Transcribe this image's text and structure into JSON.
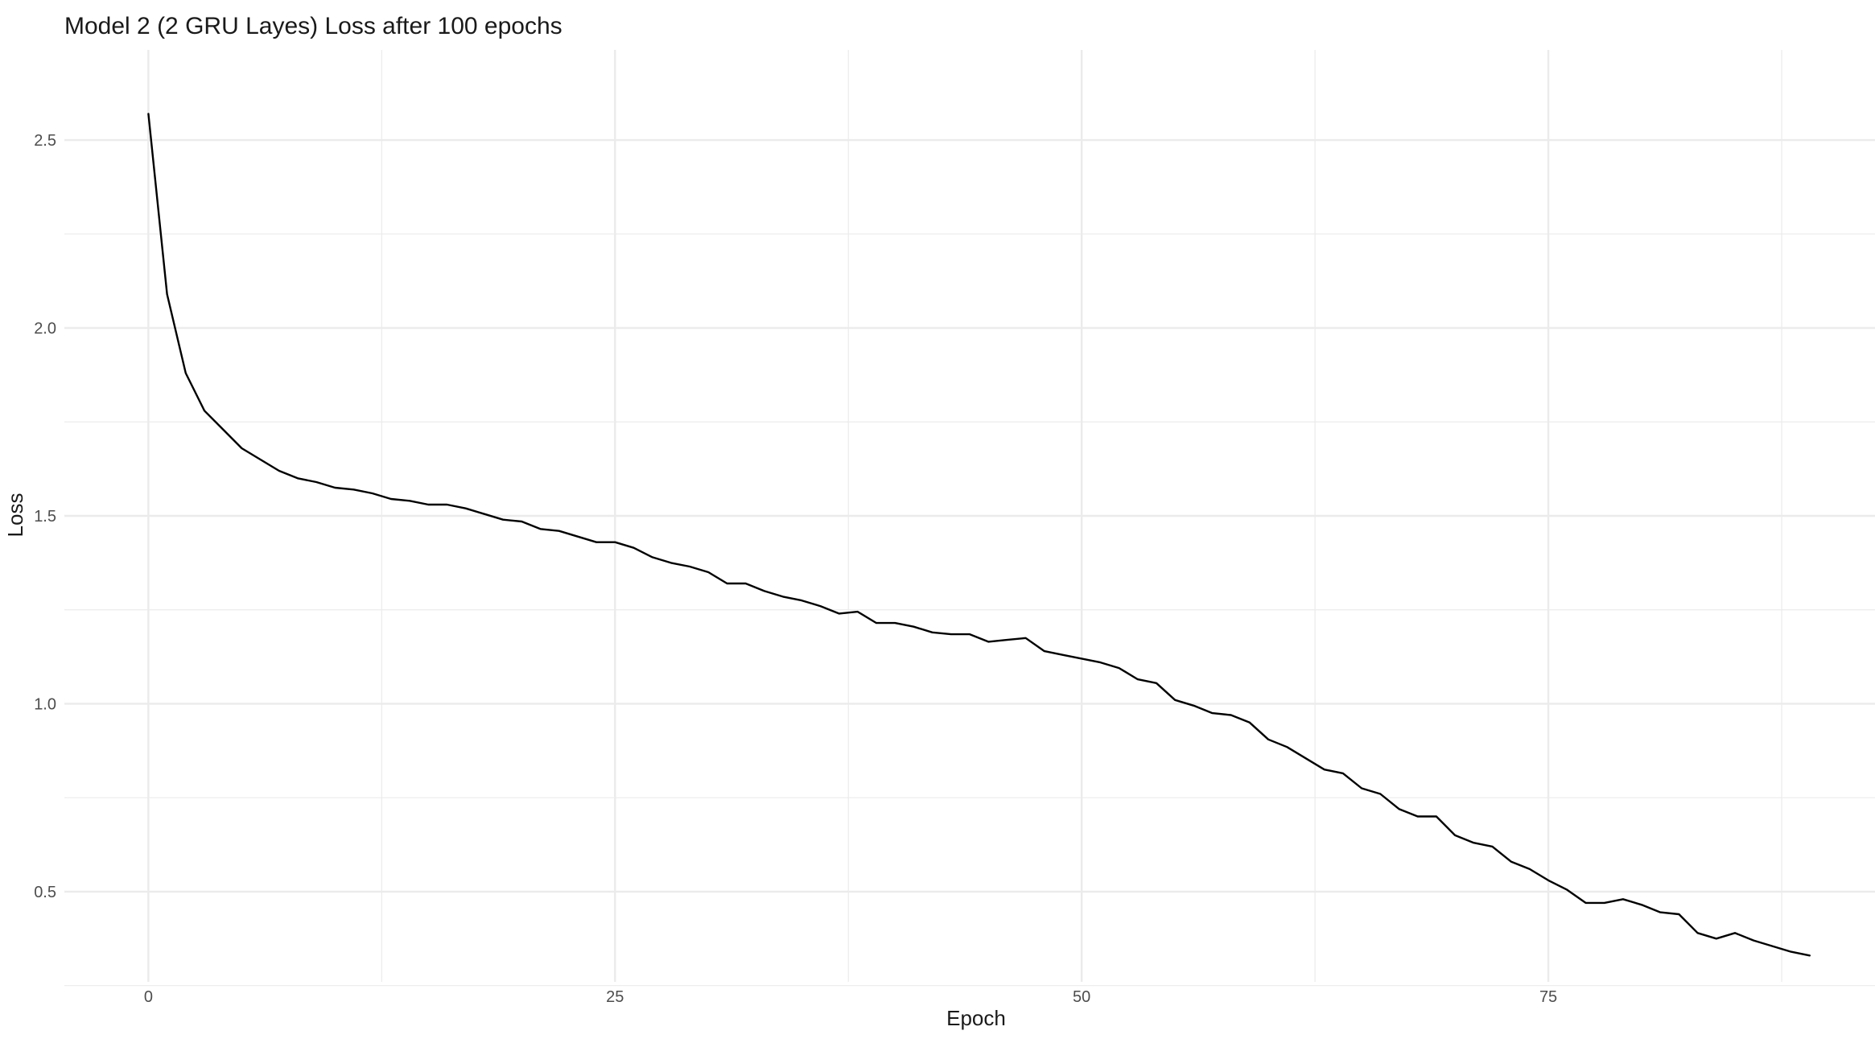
{
  "chart_data": {
    "type": "line",
    "title": "Model 2 (2 GRU Layes) Loss after 100 epochs",
    "xlabel": "Epoch",
    "ylabel": "Loss",
    "xlim": [
      -4.5,
      92.5
    ],
    "ylim": [
      0.26,
      2.74
    ],
    "x_ticks": [
      0,
      25,
      50,
      75
    ],
    "x_tick_labels": [
      "0",
      "25",
      "50",
      "75"
    ],
    "x_minor_ticks": [
      12.5,
      37.5,
      62.5,
      87.5
    ],
    "y_ticks": [
      0.5,
      1.0,
      1.5,
      2.0,
      2.5
    ],
    "y_tick_labels": [
      "0.5",
      "1.0",
      "1.5",
      "2.0",
      "2.5"
    ],
    "y_minor_ticks": [
      0.25,
      0.75,
      1.25,
      1.75,
      2.25
    ],
    "grid": true,
    "line_color": "#000000",
    "grid_color": "#ebebeb",
    "series": [
      {
        "x": [
          0,
          1,
          2,
          3,
          4,
          5,
          6,
          7,
          8,
          9,
          10,
          11,
          12,
          13,
          14,
          15,
          16,
          17,
          18,
          19,
          20,
          21,
          22,
          23,
          24,
          25,
          26,
          27,
          28,
          29,
          30,
          31,
          32,
          33,
          34,
          35,
          36,
          37,
          38,
          39,
          40,
          41,
          42,
          43,
          44,
          45,
          46,
          47,
          48,
          49,
          50,
          51,
          52,
          53,
          54,
          55,
          56,
          57,
          58,
          59,
          60,
          61,
          62,
          63,
          64,
          65,
          66,
          67,
          68,
          69,
          70,
          71,
          72,
          73,
          74,
          75,
          76,
          77,
          78,
          79,
          80,
          81,
          82,
          83,
          84,
          85,
          86,
          87,
          88,
          89
        ],
        "values": [
          2.57,
          2.09,
          1.88,
          1.78,
          1.73,
          1.68,
          1.65,
          1.62,
          1.6,
          1.59,
          1.575,
          1.57,
          1.56,
          1.545,
          1.54,
          1.53,
          1.53,
          1.52,
          1.505,
          1.49,
          1.485,
          1.465,
          1.46,
          1.445,
          1.43,
          1.43,
          1.415,
          1.39,
          1.375,
          1.365,
          1.35,
          1.32,
          1.32,
          1.3,
          1.285,
          1.275,
          1.26,
          1.24,
          1.245,
          1.215,
          1.215,
          1.205,
          1.19,
          1.185,
          1.185,
          1.165,
          1.17,
          1.175,
          1.14,
          1.13,
          1.12,
          1.11,
          1.095,
          1.065,
          1.055,
          1.01,
          0.995,
          0.975,
          0.97,
          0.95,
          0.905,
          0.885,
          0.855,
          0.825,
          0.815,
          0.775,
          0.76,
          0.72,
          0.7,
          0.7,
          0.65,
          0.63,
          0.62,
          0.58,
          0.56,
          0.53,
          0.505,
          0.47,
          0.47,
          0.48,
          0.465,
          0.445,
          0.44,
          0.39,
          0.375,
          0.39,
          0.37,
          0.355,
          0.34,
          0.33
        ]
      }
    ]
  }
}
